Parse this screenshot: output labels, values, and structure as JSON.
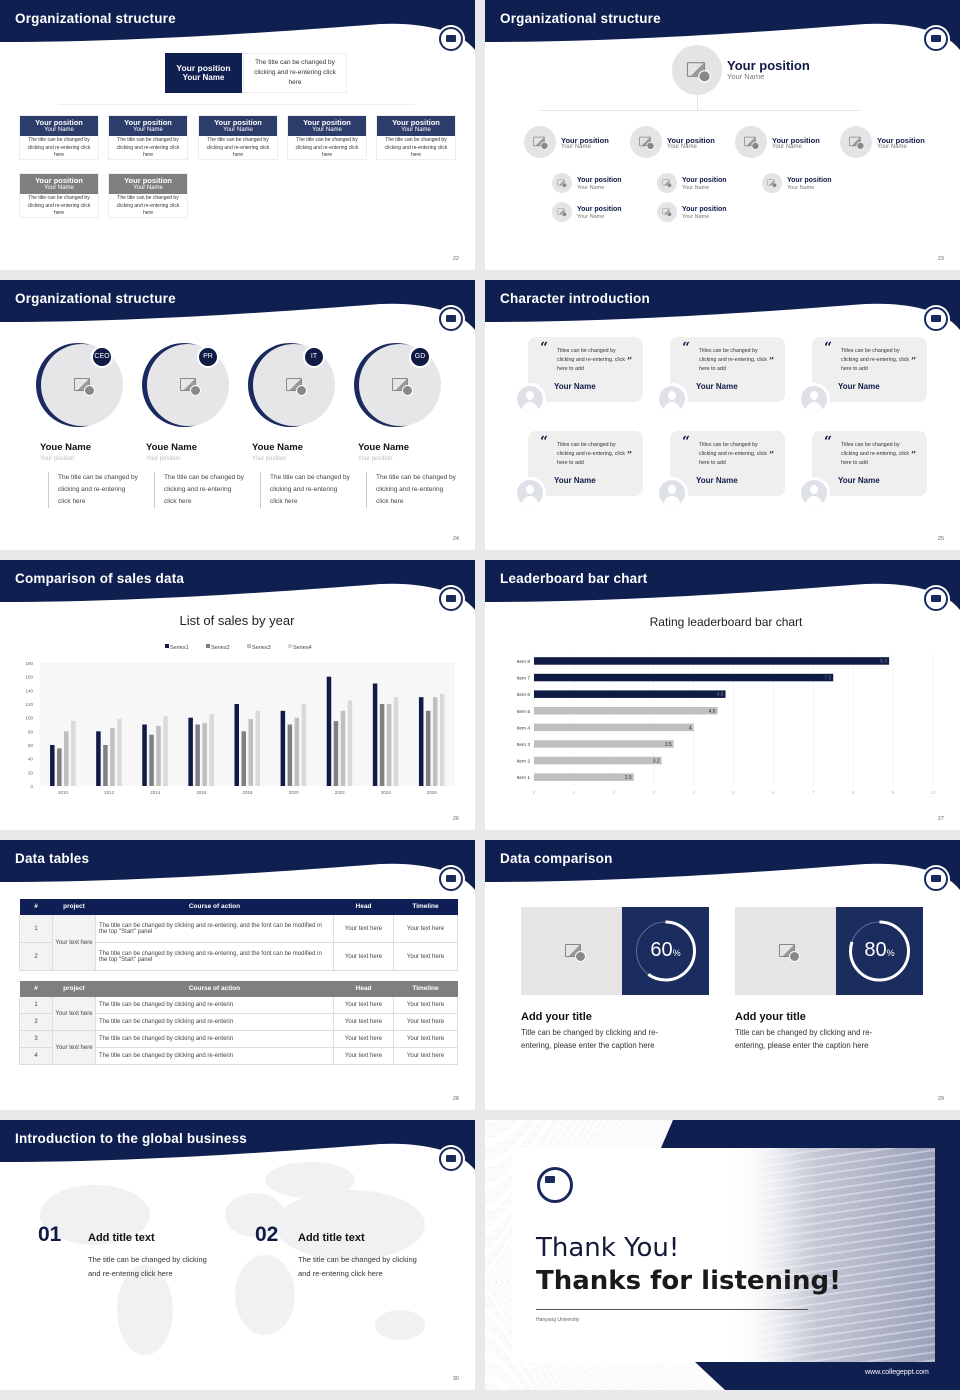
{
  "colors": {
    "navy": "#0f1f4f",
    "navy_card": "#2d3d6b",
    "gray_card": "#7f7f7f",
    "series": [
      "#0f1a45",
      "#808080",
      "#bfbfbf",
      "#d9d9d9"
    ],
    "leader_highlight": "#0f1a45",
    "leader_base": "#bfbfbf"
  },
  "slides": {
    "s22": {
      "title": "Organizational structure",
      "page": "22",
      "top": {
        "position": "Your position",
        "name": "Your Name",
        "desc": "The title can be changed by clicking and re-entering click here"
      },
      "cards": [
        {
          "position": "Your position",
          "name": "Your Name",
          "desc": "The title can be changed by clicking and re-entering click here"
        },
        {
          "position": "Your position",
          "name": "Your Name",
          "desc": "The title can be changed by clicking and re-entering click here"
        },
        {
          "position": "Your position",
          "name": "Your Name",
          "desc": "The title can be changed by clicking and re-entering click here"
        },
        {
          "position": "Your position",
          "name": "Your Name",
          "desc": "The title can be changed by clicking and re-entering click here"
        },
        {
          "position": "Your position",
          "name": "Your Name",
          "desc": "The title can be changed by clicking and re-entering click here"
        },
        {
          "position": "Your position",
          "name": "Your Name",
          "desc": "The title can be changed by clicking and re-entering click here"
        },
        {
          "position": "Your position",
          "name": "Your Name",
          "desc": "The title can be changed by clicking and re-entering click here"
        }
      ]
    },
    "s23": {
      "title": "Organizational structure",
      "page": "23",
      "top": {
        "position": "Your position",
        "name": "Your Name"
      },
      "mid": [
        {
          "position": "Your position",
          "name": "Your Name"
        },
        {
          "position": "Your position",
          "name": "Your Name"
        },
        {
          "position": "Your position",
          "name": "Your Name"
        },
        {
          "position": "Your position",
          "name": "Your Name"
        }
      ],
      "sub": [
        {
          "position": "Your position",
          "name": "Your Name"
        },
        {
          "position": "Your position",
          "name": "Your Name"
        },
        {
          "position": "Your position",
          "name": "Your Name"
        },
        {
          "position": "Your position",
          "name": "Your Name"
        },
        {
          "position": "Your position",
          "name": "Your Name"
        }
      ]
    },
    "s24": {
      "title": "Organizational structure",
      "page": "24",
      "people": [
        {
          "badge": "CEO",
          "name": "Youe Name",
          "position": "Your position",
          "desc": "The title can be changed by clicking and re-entering click here"
        },
        {
          "badge": "PR",
          "name": "Youe Name",
          "position": "Your position",
          "desc": "The title can be changed by clicking and re-entering click here"
        },
        {
          "badge": "IT",
          "name": "Youe Name",
          "position": "Your position",
          "desc": "The title can be changed by clicking and re-entering click here"
        },
        {
          "badge": "GD",
          "name": "Youe Name",
          "position": "Your position",
          "desc": "The title can be changed by clicking and re-entering click here"
        }
      ]
    },
    "s25": {
      "title": "Character introduction",
      "page": "25",
      "cards": [
        {
          "quote": "Titles can be changed by clicking and re-entering, click here to add",
          "name": "Your Name"
        },
        {
          "quote": "Titles can be changed by clicking and re-entering, click here to add",
          "name": "Your Name"
        },
        {
          "quote": "Titles can be changed by clicking and re-entering, click here to add",
          "name": "Your Name"
        },
        {
          "quote": "Titles can be changed by clicking and re-entering, click here to add",
          "name": "Your Name"
        },
        {
          "quote": "Titles can be changed by clicking and re-entering, click here to add",
          "name": "Your Name"
        },
        {
          "quote": "Titles can be changed by clicking and re-entering, click here to add",
          "name": "Your Name"
        }
      ]
    },
    "s26": {
      "title": "Comparison of sales data",
      "page": "26"
    },
    "s27": {
      "title": "Leaderboard bar chart",
      "page": "27"
    },
    "s28": {
      "title": "Data tables",
      "page": "28",
      "headers": [
        "#",
        "project",
        "Course of action",
        "Head",
        "Timeline"
      ],
      "table1": {
        "project": "Your text here",
        "rows": [
          {
            "n": "1",
            "course": "The title can be changed by clicking and re-entering, and the font can be modified in the top \"Start\" panel",
            "head": "Your text here",
            "timeline": "Your text here"
          },
          {
            "n": "2",
            "course": "The title can be changed by clicking and re-entering, and the font can be modified in the top \"Start\" panel",
            "head": "Your text here",
            "timeline": "Your text here"
          }
        ]
      },
      "table2": {
        "projects": [
          "Your text here",
          "Your text here"
        ],
        "rows": [
          {
            "n": "1",
            "course": "The title can be changed by clicking and re-enterin",
            "head": "Your text here",
            "timeline": "Your text here"
          },
          {
            "n": "2",
            "course": "The title can be changed by clicking and re-enterin",
            "head": "Your text here",
            "timeline": "Your text here"
          },
          {
            "n": "3",
            "course": "The title can be changed by clicking and re-enterin",
            "head": "Your text here",
            "timeline": "Your text here"
          },
          {
            "n": "4",
            "course": "The title can be changed by clicking and re-enterin",
            "head": "Your text here",
            "timeline": "Your text here"
          }
        ]
      }
    },
    "s29": {
      "title": "Data comparison",
      "page": "29",
      "items": [
        {
          "percent": 60,
          "value": "60",
          "unit": "%",
          "title": "Add your title",
          "caption": "Title can be changed by clicking and re-entering, please enter the caption here"
        },
        {
          "percent": 80,
          "value": "80",
          "unit": "%",
          "title": "Add your title",
          "caption": "Title can be changed by clicking and re-entering, please enter the caption here"
        }
      ]
    },
    "s30": {
      "title": "Introduction to the global business",
      "page": "30",
      "items": [
        {
          "num": "01",
          "title": "Add title text",
          "desc": "The title can be changed by clicking and re-entering click here"
        },
        {
          "num": "02",
          "title": "Add title text",
          "desc": "The title can be changed by clicking and re-entering click here"
        }
      ]
    },
    "s31": {
      "line1": "Thank You!",
      "line2": "Thanks for listening!",
      "university": "Hanyang University",
      "url": "www.collegeppt.com"
    }
  },
  "chart_data": [
    {
      "type": "bar",
      "title": "List of sales by year",
      "categories": [
        "2010",
        "2012",
        "2014",
        "2016",
        "2018",
        "2020",
        "2022",
        "2024",
        "2026"
      ],
      "series": [
        {
          "name": "Series1",
          "values": [
            60,
            80,
            90,
            100,
            120,
            110,
            160,
            150,
            130
          ]
        },
        {
          "name": "Series2",
          "values": [
            55,
            60,
            75,
            90,
            80,
            90,
            95,
            120,
            110
          ]
        },
        {
          "name": "Series3",
          "values": [
            80,
            85,
            88,
            92,
            98,
            100,
            110,
            120,
            130
          ]
        },
        {
          "name": "Series4",
          "values": [
            95,
            98,
            102,
            105,
            110,
            120,
            125,
            130,
            135
          ]
        }
      ],
      "ylim": [
        0,
        180
      ],
      "yticks": [
        "0",
        "20",
        "40",
        "60",
        "80",
        "100",
        "120",
        "140",
        "160",
        "180"
      ],
      "legend": "top",
      "grid": false
    },
    {
      "type": "bar",
      "orientation": "horizontal",
      "title": "Rating leaderboard bar chart",
      "categories": [
        "Item 8",
        "Item 7",
        "Item 6",
        "Item 5",
        "Item 4",
        "Item 3",
        "Item 2",
        "Item 1"
      ],
      "values": [
        8.9,
        7.5,
        4.8,
        4.6,
        4,
        3.5,
        3.2,
        2.5
      ],
      "labels": [
        "8.9",
        "7.5",
        "4.8",
        "4.6",
        "4",
        "3.5",
        "3.2",
        "2.5"
      ],
      "highlighted": [
        "Item 8",
        "Item 7",
        "Item 6"
      ],
      "xlim": [
        0,
        10
      ],
      "xticks": [
        "0",
        "1",
        "2",
        "3",
        "4",
        "5",
        "6",
        "7",
        "8",
        "9",
        "10"
      ],
      "grid": true
    }
  ]
}
